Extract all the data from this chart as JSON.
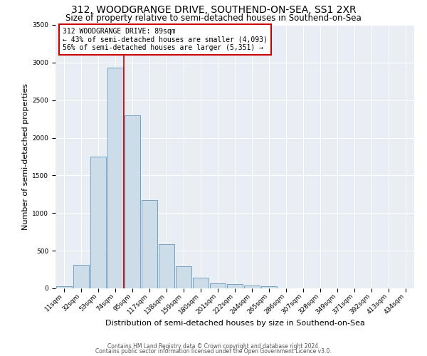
{
  "title": "312, WOODGRANGE DRIVE, SOUTHEND-ON-SEA, SS1 2XR",
  "subtitle": "Size of property relative to semi-detached houses in Southend-on-Sea",
  "xlabel": "Distribution of semi-detached houses by size in Southend-on-Sea",
  "ylabel": "Number of semi-detached properties",
  "bin_labels": [
    "11sqm",
    "32sqm",
    "53sqm",
    "74sqm",
    "95sqm",
    "117sqm",
    "138sqm",
    "159sqm",
    "180sqm",
    "201sqm",
    "222sqm",
    "244sqm",
    "265sqm",
    "286sqm",
    "307sqm",
    "328sqm",
    "349sqm",
    "371sqm",
    "392sqm",
    "413sqm",
    "434sqm"
  ],
  "bin_values": [
    30,
    310,
    1750,
    2930,
    2300,
    1170,
    590,
    295,
    145,
    70,
    55,
    40,
    30,
    0,
    0,
    0,
    0,
    0,
    0,
    0,
    0
  ],
  "bar_color": "#ccdce8",
  "bar_edge_color": "#6699bb",
  "vline_color": "#cc0000",
  "vline_x": 3.5,
  "annotation_text": "312 WOODGRANGE DRIVE: 89sqm\n← 43% of semi-detached houses are smaller (4,093)\n56% of semi-detached houses are larger (5,351) →",
  "annotation_box_color": "#ffffff",
  "annotation_box_edge_color": "#cc0000",
  "ylim": [
    0,
    3500
  ],
  "yticks": [
    0,
    500,
    1000,
    1500,
    2000,
    2500,
    3000,
    3500
  ],
  "bg_color": "#e8eef4",
  "footer1": "Contains HM Land Registry data © Crown copyright and database right 2024.",
  "footer2": "Contains public sector information licensed under the Open Government Licence v3.0.",
  "title_fontsize": 10,
  "subtitle_fontsize": 8.5,
  "ylabel_fontsize": 8,
  "xlabel_fontsize": 8,
  "tick_fontsize": 6.5,
  "annotation_fontsize": 7,
  "footer_fontsize": 5.5
}
